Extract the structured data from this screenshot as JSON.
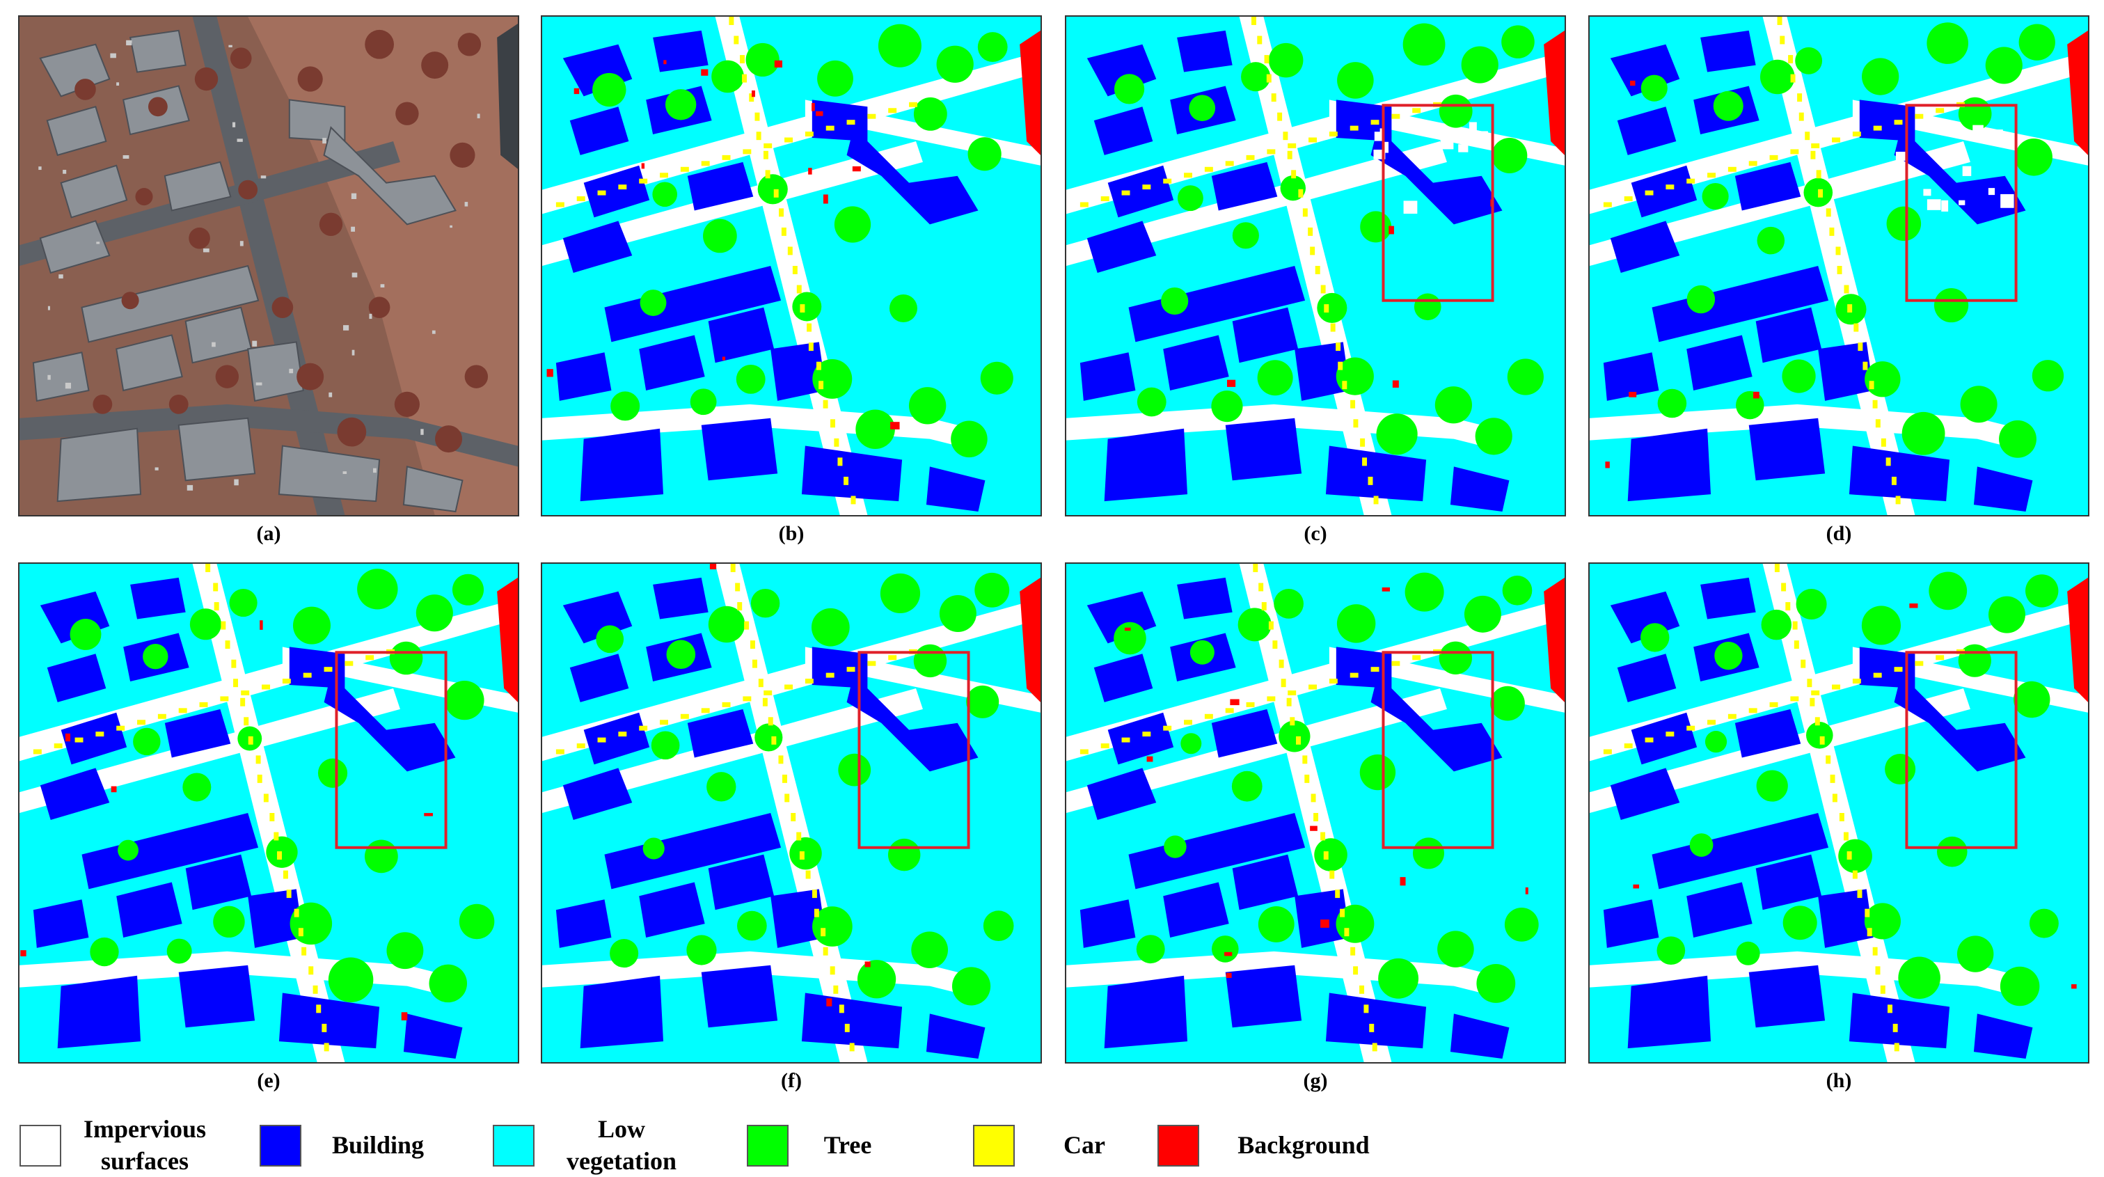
{
  "panels": [
    {
      "id": "a",
      "caption": "(a)",
      "kind": "aerial"
    },
    {
      "id": "b",
      "caption": "(b)",
      "kind": "segmentation",
      "highlight": false
    },
    {
      "id": "c",
      "caption": "(c)",
      "kind": "segmentation",
      "highlight": true
    },
    {
      "id": "d",
      "caption": "(d)",
      "kind": "segmentation",
      "highlight": true
    },
    {
      "id": "e",
      "caption": "(e)",
      "kind": "segmentation",
      "highlight": true
    },
    {
      "id": "f",
      "caption": "(f)",
      "kind": "segmentation",
      "highlight": true
    },
    {
      "id": "g",
      "caption": "(g)",
      "kind": "segmentation",
      "highlight": true
    },
    {
      "id": "h",
      "caption": "(h)",
      "kind": "segmentation",
      "highlight": true
    }
  ],
  "legend": [
    {
      "label": "Impervious\nsurfaces",
      "color": "#ffffff"
    },
    {
      "label": "Building",
      "color": "#0000ff"
    },
    {
      "label": "Low\nvegetation",
      "color": "#00ffff"
    },
    {
      "label": "Tree",
      "color": "#00ff00"
    },
    {
      "label": "Car",
      "color": "#ffff00"
    },
    {
      "label": "Background",
      "color": "#ff0000"
    }
  ],
  "colors": {
    "impervious": "#ffffff",
    "building": "#0000ff",
    "low_vegetation": "#00ffff",
    "tree": "#00ff00",
    "car": "#ffff00",
    "background": "#ff0000",
    "highlight_box": "#e0202a"
  }
}
